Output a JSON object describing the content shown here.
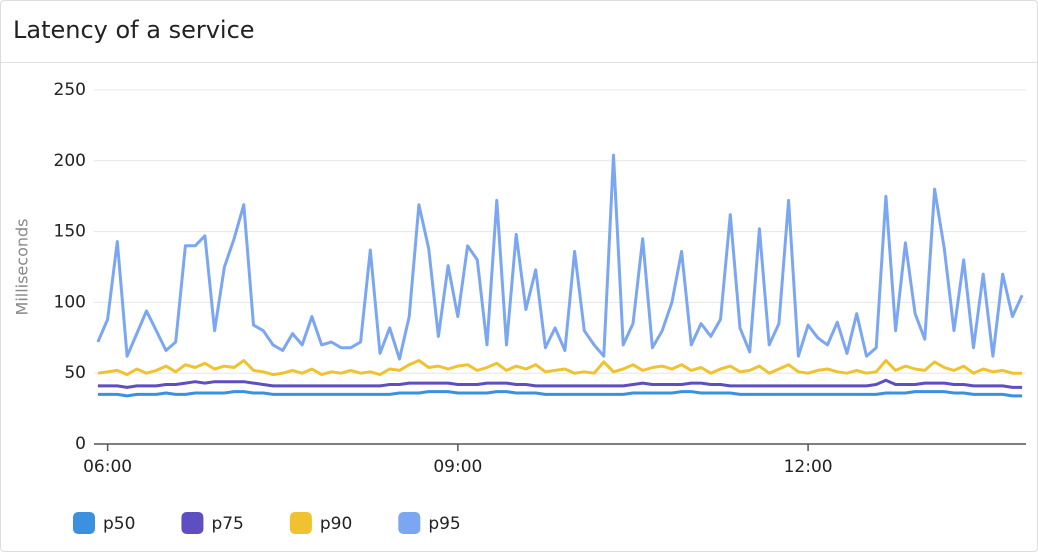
{
  "chart_data": {
    "type": "line",
    "title": "Latency of a service",
    "y_label": "Milliseconds",
    "x": [
      "05:55",
      "06:00",
      "06:05",
      "06:10",
      "06:15",
      "06:20",
      "06:25",
      "06:30",
      "06:35",
      "06:40",
      "06:45",
      "06:50",
      "06:55",
      "07:00",
      "07:05",
      "07:10",
      "07:15",
      "07:20",
      "07:25",
      "07:30",
      "07:35",
      "07:40",
      "07:45",
      "07:50",
      "07:55",
      "08:00",
      "08:05",
      "08:10",
      "08:15",
      "08:20",
      "08:25",
      "08:30",
      "08:35",
      "08:40",
      "08:45",
      "08:50",
      "08:55",
      "09:00",
      "09:05",
      "09:10",
      "09:15",
      "09:20",
      "09:25",
      "09:30",
      "09:35",
      "09:40",
      "09:45",
      "09:50",
      "09:55",
      "10:00",
      "10:05",
      "10:10",
      "10:15",
      "10:20",
      "10:25",
      "10:30",
      "10:35",
      "10:40",
      "10:45",
      "10:50",
      "10:55",
      "11:00",
      "11:05",
      "11:10",
      "11:15",
      "11:20",
      "11:25",
      "11:30",
      "11:35",
      "11:40",
      "11:45",
      "11:50",
      "11:55",
      "12:00",
      "12:05",
      "12:10",
      "12:15",
      "12:20",
      "12:25",
      "12:30",
      "12:35",
      "12:40",
      "12:45",
      "12:50",
      "12:55",
      "13:00",
      "13:05",
      "13:10",
      "13:15",
      "13:20",
      "13:25",
      "13:30",
      "13:35",
      "13:40",
      "13:45",
      "13:50"
    ],
    "series": [
      {
        "name": "p50",
        "color": "#3b91e0",
        "values": [
          35,
          35,
          35,
          34,
          35,
          35,
          35,
          36,
          35,
          35,
          36,
          36,
          36,
          36,
          37,
          37,
          36,
          36,
          35,
          35,
          35,
          35,
          35,
          35,
          35,
          35,
          35,
          35,
          35,
          35,
          35,
          36,
          36,
          36,
          37,
          37,
          37,
          36,
          36,
          36,
          36,
          37,
          37,
          36,
          36,
          36,
          35,
          35,
          35,
          35,
          35,
          35,
          35,
          35,
          35,
          36,
          36,
          36,
          36,
          36,
          37,
          37,
          36,
          36,
          36,
          36,
          35,
          35,
          35,
          35,
          35,
          35,
          35,
          35,
          35,
          35,
          35,
          35,
          35,
          35,
          35,
          36,
          36,
          36,
          37,
          37,
          37,
          37,
          36,
          36,
          35,
          35,
          35,
          35,
          34,
          34
        ]
      },
      {
        "name": "p75",
        "color": "#5e4ec2",
        "values": [
          41,
          41,
          41,
          40,
          41,
          41,
          41,
          42,
          42,
          43,
          44,
          43,
          44,
          44,
          44,
          44,
          43,
          42,
          41,
          41,
          41,
          41,
          41,
          41,
          41,
          41,
          41,
          41,
          41,
          41,
          42,
          42,
          43,
          43,
          43,
          43,
          43,
          42,
          42,
          42,
          43,
          43,
          43,
          42,
          42,
          41,
          41,
          41,
          41,
          41,
          41,
          41,
          41,
          41,
          41,
          42,
          43,
          42,
          42,
          42,
          42,
          43,
          43,
          42,
          42,
          41,
          41,
          41,
          41,
          41,
          41,
          41,
          41,
          41,
          41,
          41,
          41,
          41,
          41,
          41,
          42,
          45,
          42,
          42,
          42,
          43,
          43,
          43,
          42,
          42,
          41,
          41,
          41,
          41,
          40,
          40
        ]
      },
      {
        "name": "p90",
        "color": "#f0c230",
        "values": [
          50,
          51,
          52,
          49,
          53,
          50,
          52,
          55,
          51,
          56,
          54,
          57,
          53,
          55,
          54,
          59,
          52,
          51,
          49,
          50,
          52,
          50,
          53,
          49,
          51,
          50,
          52,
          50,
          51,
          49,
          53,
          52,
          56,
          59,
          54,
          55,
          53,
          55,
          56,
          52,
          54,
          57,
          52,
          55,
          53,
          56,
          51,
          52,
          53,
          50,
          51,
          50,
          58,
          51,
          53,
          56,
          52,
          54,
          55,
          53,
          56,
          52,
          54,
          50,
          53,
          55,
          51,
          52,
          55,
          50,
          53,
          56,
          51,
          50,
          52,
          53,
          51,
          50,
          52,
          50,
          51,
          59,
          52,
          55,
          53,
          52,
          58,
          54,
          52,
          55,
          50,
          53,
          51,
          52,
          50,
          50
        ]
      },
      {
        "name": "p95",
        "color": "#7ba7f2",
        "values": [
          72,
          88,
          143,
          62,
          78,
          94,
          80,
          66,
          72,
          140,
          140,
          147,
          80,
          125,
          145,
          169,
          84,
          80,
          70,
          66,
          78,
          70,
          90,
          70,
          72,
          68,
          68,
          72,
          137,
          64,
          82,
          60,
          90,
          169,
          138,
          76,
          126,
          90,
          140,
          130,
          70,
          172,
          70,
          148,
          95,
          123,
          68,
          82,
          66,
          136,
          80,
          70,
          62,
          204,
          70,
          85,
          145,
          68,
          80,
          100,
          136,
          70,
          85,
          76,
          88,
          162,
          82,
          65,
          152,
          70,
          85,
          172,
          62,
          84,
          75,
          70,
          86,
          64,
          92,
          62,
          68,
          175,
          80,
          142,
          92,
          74,
          180,
          138,
          80,
          130,
          68,
          120,
          62,
          120,
          90,
          105
        ]
      }
    ],
    "xlim": [
      "05:53",
      "13:52"
    ],
    "xticks": [
      "06:00",
      "09:00",
      "12:00"
    ],
    "ylim": [
      0,
      250
    ],
    "yticks": [
      0,
      50,
      100,
      150,
      200,
      250
    ],
    "grid": true
  }
}
